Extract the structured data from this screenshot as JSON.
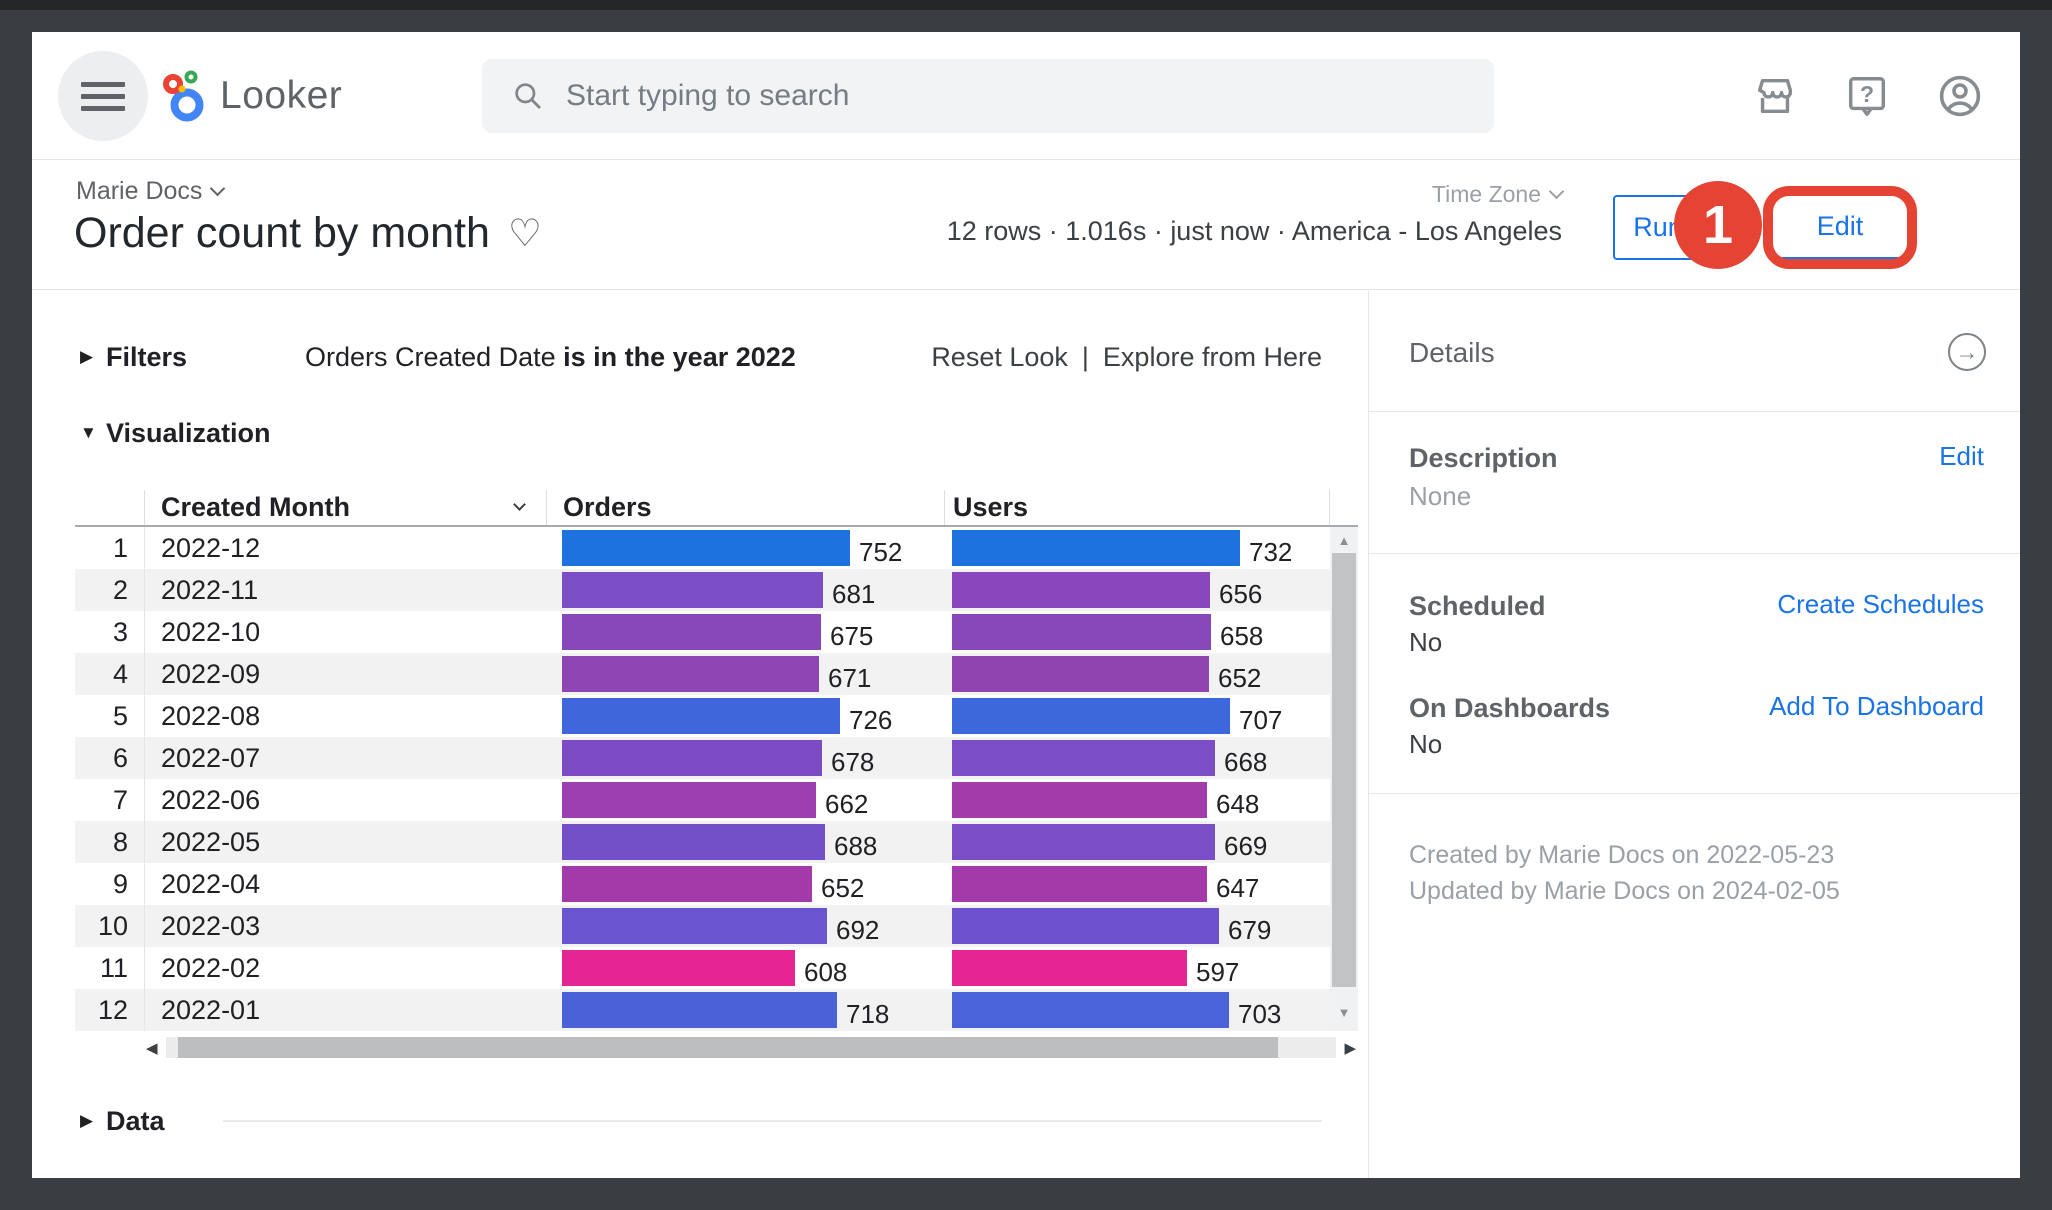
{
  "header": {
    "logo_text": "Looker",
    "search_placeholder": "Start typing to search"
  },
  "title_bar": {
    "breadcrumb": "Marie Docs",
    "title": "Order count by month",
    "timezone_label": "Time Zone",
    "stats": "12 rows · 1.016s · just now · America - Los Angeles",
    "run_label": "Run",
    "edit_label": "Edit",
    "annotation_number": "1"
  },
  "filters": {
    "section_label": "Filters",
    "filter_field": "Orders Created Date ",
    "filter_condition": "is in the year 2022",
    "reset_label": "Reset Look",
    "separator": "|",
    "explore_label": "Explore from Here"
  },
  "visualization": {
    "section_label": "Visualization",
    "columns": [
      "Created Month",
      "Orders",
      "Users"
    ],
    "orders_max": 752,
    "users_max": 732,
    "rows": [
      {
        "n": "1",
        "month": "2022-12",
        "orders": 752,
        "users": 732,
        "orders_color": "#1e72e0",
        "users_color": "#1e72e0"
      },
      {
        "n": "2",
        "month": "2022-11",
        "orders": 681,
        "users": 656,
        "orders_color": "#7c4ec6",
        "users_color": "#8947bb"
      },
      {
        "n": "3",
        "month": "2022-10",
        "orders": 675,
        "users": 658,
        "orders_color": "#8948b9",
        "users_color": "#8848ba"
      },
      {
        "n": "4",
        "month": "2022-09",
        "orders": 671,
        "users": 652,
        "orders_color": "#8d46b3",
        "users_color": "#9044b0"
      },
      {
        "n": "5",
        "month": "2022-08",
        "orders": 726,
        "users": 707,
        "orders_color": "#3f66da",
        "users_color": "#3c68dc"
      },
      {
        "n": "6",
        "month": "2022-07",
        "orders": 678,
        "users": 668,
        "orders_color": "#7d4cc4",
        "users_color": "#7b4ec6"
      },
      {
        "n": "7",
        "month": "2022-06",
        "orders": 662,
        "users": 648,
        "orders_color": "#9d3eb1",
        "users_color": "#a13caa"
      },
      {
        "n": "8",
        "month": "2022-05",
        "orders": 688,
        "users": 669,
        "orders_color": "#7450c8",
        "users_color": "#7a4ec6"
      },
      {
        "n": "9",
        "month": "2022-04",
        "orders": 652,
        "users": 647,
        "orders_color": "#a43aa9",
        "users_color": "#a43aa9"
      },
      {
        "n": "10",
        "month": "2022-03",
        "orders": 692,
        "users": 679,
        "orders_color": "#6b54cf",
        "users_color": "#6e52cd"
      },
      {
        "n": "11",
        "month": "2022-02",
        "orders": 608,
        "users": 597,
        "orders_color": "#e52592",
        "users_color": "#e52592"
      },
      {
        "n": "12",
        "month": "2022-01",
        "orders": 718,
        "users": 703,
        "orders_color": "#4a61d8",
        "users_color": "#4a62da"
      }
    ]
  },
  "chart_data": {
    "type": "table",
    "title": "Order count by month",
    "columns": [
      "Created Month",
      "Orders",
      "Users"
    ],
    "rows": [
      [
        "2022-12",
        752,
        732
      ],
      [
        "2022-11",
        681,
        656
      ],
      [
        "2022-10",
        675,
        658
      ],
      [
        "2022-09",
        671,
        652
      ],
      [
        "2022-08",
        726,
        707
      ],
      [
        "2022-07",
        678,
        668
      ],
      [
        "2022-06",
        662,
        648
      ],
      [
        "2022-05",
        688,
        669
      ],
      [
        "2022-04",
        652,
        647
      ],
      [
        "2022-03",
        692,
        679
      ],
      [
        "2022-02",
        608,
        597
      ],
      [
        "2022-01",
        718,
        703
      ]
    ],
    "bar_scale": {
      "orders_max": 752,
      "users_max": 732
    },
    "color_scale": {
      "low": "#e52592",
      "mid": "#8948b9",
      "high": "#1e72e0"
    }
  },
  "data_section": {
    "section_label": "Data"
  },
  "details": {
    "title": "Details",
    "description_label": "Description",
    "description_value": "None",
    "description_action": "Edit",
    "scheduled_label": "Scheduled",
    "scheduled_value": "No",
    "scheduled_action": "Create Schedules",
    "dashboards_label": "On Dashboards",
    "dashboards_value": "No",
    "dashboards_action": "Add To Dashboard",
    "created_line": "Created by Marie Docs on 2022-05-23",
    "updated_line": "Updated by Marie Docs on 2024-02-05"
  },
  "colors": {
    "accent_blue": "#1a73e8",
    "annotation_red": "#e54334",
    "frame": "#3a3d41"
  }
}
